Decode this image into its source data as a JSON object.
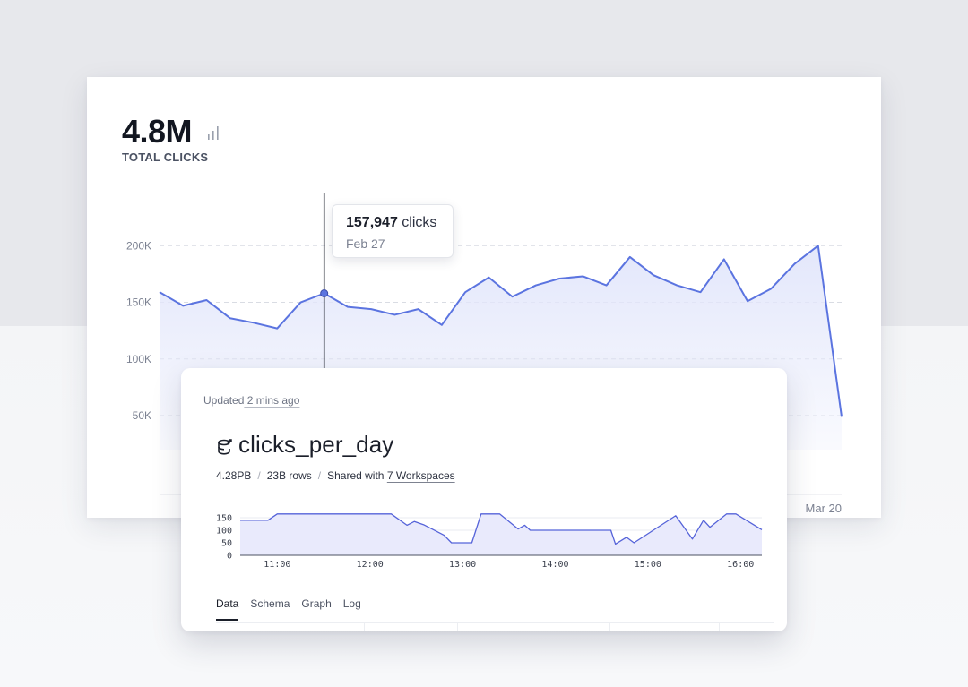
{
  "kpi": {
    "value": "4.8M",
    "label": "TOTAL CLICKS",
    "icon": "bar-chart-icon"
  },
  "tooltip": {
    "value": "157,947",
    "unit": "clicks",
    "date": "Feb 27"
  },
  "colors": {
    "line": "#5b74e0",
    "fill": "#e3e7fb",
    "grid": "#d9dce3",
    "axis_text": "#7b8191",
    "mini_line": "#5563d9",
    "mini_fill": "#e9eafc"
  },
  "chart_data": [
    {
      "type": "area",
      "y_ticks": [
        "200K",
        "150K",
        "100K",
        "50K"
      ],
      "y_tick_values": [
        200000,
        150000,
        100000,
        50000
      ],
      "ylim": [
        20000,
        220000
      ],
      "x_end_label": "Mar 20",
      "highlight_index": 7,
      "grid": true,
      "values": [
        159000,
        147000,
        152000,
        136000,
        132000,
        127000,
        150000,
        157947,
        146000,
        144000,
        139000,
        144000,
        130000,
        159000,
        172000,
        155000,
        165000,
        171000,
        173000,
        165000,
        190000,
        174000,
        165000,
        159000,
        188000,
        151000,
        162000,
        184000,
        200000,
        49000
      ]
    },
    {
      "type": "area",
      "y_ticks": [
        "150",
        "100",
        "50",
        "0"
      ],
      "y_tick_values": [
        150,
        100,
        50,
        0
      ],
      "ylim": [
        0,
        175
      ],
      "x_ticks": [
        "11:00",
        "12:00",
        "13:00",
        "14:00",
        "15:00",
        "16:00"
      ],
      "x_tick_values": [
        11.0,
        12.0,
        13.0,
        14.0,
        15.0,
        16.0
      ],
      "xlim": [
        10.6,
        16.23
      ],
      "points": [
        [
          10.6,
          140
        ],
        [
          10.9,
          140
        ],
        [
          11.0,
          165
        ],
        [
          12.23,
          165
        ],
        [
          12.4,
          120
        ],
        [
          12.48,
          135
        ],
        [
          12.58,
          122
        ],
        [
          12.8,
          80
        ],
        [
          12.88,
          50
        ],
        [
          13.1,
          50
        ],
        [
          13.2,
          165
        ],
        [
          13.4,
          165
        ],
        [
          13.6,
          105
        ],
        [
          13.67,
          120
        ],
        [
          13.73,
          100
        ],
        [
          13.9,
          100
        ],
        [
          14.4,
          100
        ],
        [
          14.6,
          100
        ],
        [
          14.65,
          45
        ],
        [
          14.77,
          72
        ],
        [
          14.85,
          50
        ],
        [
          15.3,
          158
        ],
        [
          15.48,
          65
        ],
        [
          15.6,
          140
        ],
        [
          15.67,
          112
        ],
        [
          15.85,
          165
        ],
        [
          15.95,
          165
        ],
        [
          16.23,
          102
        ]
      ]
    }
  ],
  "dataset": {
    "updated_prefix": "Updated",
    "updated_ago": " 2 mins ago",
    "name": "clicks_per_day",
    "icon": "database-refresh-icon",
    "size": "4.28PB",
    "rows": "23B rows",
    "shared_prefix": "Shared with",
    "shared_link": "7 Workspaces"
  },
  "tabs": [
    "Data",
    "Schema",
    "Graph",
    "Log"
  ],
  "active_tab": "Data"
}
